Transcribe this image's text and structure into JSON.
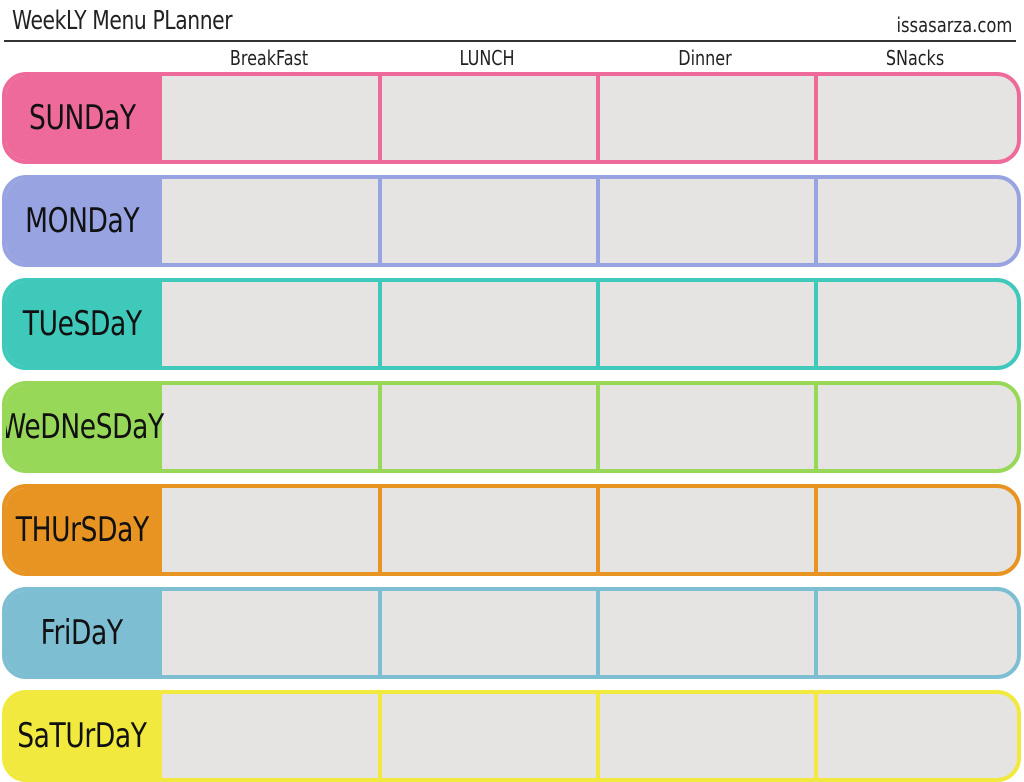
{
  "planner": {
    "title": "WeekLY Menu PLanner",
    "site": "issasarza.com",
    "columns": [
      "BreakFast",
      "LUNCH",
      "Dinner",
      "SNacks"
    ],
    "days": [
      {
        "label": "SUNDaY",
        "color": "#ee6a9a"
      },
      {
        "label": "MONDaY",
        "color": "#98a4e2"
      },
      {
        "label": "TUeSDaY",
        "color": "#3ec9bb"
      },
      {
        "label": "WeDNeSDaY",
        "color": "#98d858"
      },
      {
        "label": "THUrSDaY",
        "color": "#e89422"
      },
      {
        "label": "FriDaY",
        "color": "#7ebed2"
      },
      {
        "label": "SaTUrDaY",
        "color": "#f1e93e"
      }
    ]
  }
}
